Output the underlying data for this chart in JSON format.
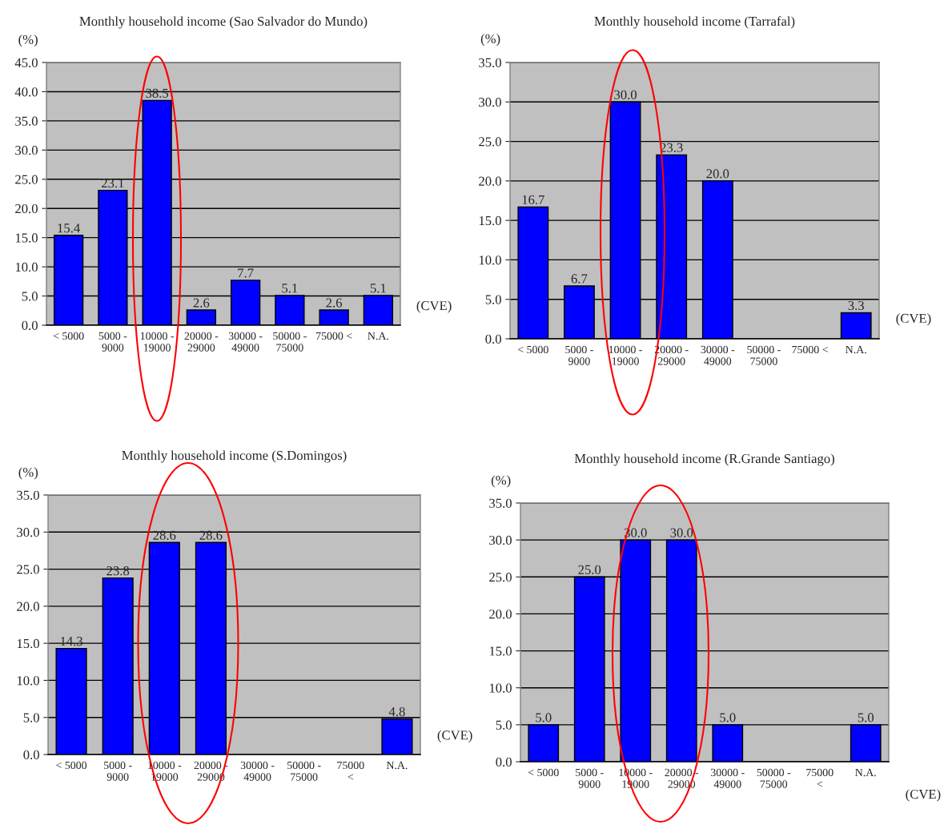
{
  "chart_data": [
    {
      "type": "bar",
      "title": "Monthly household income (Sao Salvador do Mundo)",
      "ylabel": "(%)",
      "xlabel": "(CVE)",
      "categories": [
        "< 5000",
        "5000 -\n9000",
        "10000 -\n19000",
        "20000 -\n29000",
        "30000 -\n49000",
        "50000 -\n75000",
        "75000 <",
        "N.A."
      ],
      "values": [
        15.4,
        23.1,
        38.5,
        2.6,
        7.7,
        5.1,
        2.6,
        5.1
      ],
      "value_labels": [
        "15.4",
        "23.1",
        "38.5",
        "2.6",
        "7.7",
        "5.1",
        "2.6",
        "5.1"
      ],
      "color": "#0000ff",
      "ylim": [
        0,
        45
      ],
      "yticks": [
        {
          "value": 0,
          "label": "0.0"
        },
        {
          "value": 5,
          "label": "5.0"
        },
        {
          "value": 10,
          "label": "10.0"
        },
        {
          "value": 15,
          "label": "15.0"
        },
        {
          "value": 20,
          "label": "20.0"
        },
        {
          "value": 25,
          "label": "25.0"
        },
        {
          "value": 30,
          "label": "30.0"
        },
        {
          "value": 35,
          "label": "35.0"
        },
        {
          "value": 40,
          "label": "40.0"
        },
        {
          "value": 45,
          "label": "45.0"
        }
      ],
      "grid": "y",
      "legend": false
    },
    {
      "type": "bar",
      "title": "Monthly household income (Tarrafal)",
      "ylabel": "(%)",
      "xlabel": "(CVE)",
      "categories": [
        "< 5000",
        "5000 -\n9000",
        "10000 -\n19000",
        "20000 -\n29000",
        "30000 -\n49000",
        "50000 -\n75000",
        "75000 <",
        "N.A."
      ],
      "values": [
        16.7,
        6.7,
        30.0,
        23.3,
        20.0,
        null,
        null,
        3.3
      ],
      "value_labels": [
        "16.7",
        "6.7",
        "30.0",
        "23.3",
        "20.0",
        null,
        null,
        "3.3"
      ],
      "color": "#0000ff",
      "ylim": [
        0,
        35
      ],
      "yticks": [
        {
          "value": 0,
          "label": "0.0"
        },
        {
          "value": 5,
          "label": "5.0"
        },
        {
          "value": 10,
          "label": "10.0"
        },
        {
          "value": 15,
          "label": "15.0"
        },
        {
          "value": 20,
          "label": "20.0"
        },
        {
          "value": 25,
          "label": "25.0"
        },
        {
          "value": 30,
          "label": "30.0"
        },
        {
          "value": 35,
          "label": "35.0"
        }
      ],
      "grid": "y",
      "legend": false
    },
    {
      "type": "bar",
      "title": "Monthly household income (S.Domingos)",
      "ylabel": "(%)",
      "xlabel": "(CVE)",
      "categories": [
        "< 5000",
        "5000 -\n9000",
        "10000 -\n19000",
        "20000 -\n29000",
        "30000 -\n49000",
        "50000 -\n75000",
        "75000\n<",
        "N.A."
      ],
      "values": [
        14.3,
        23.8,
        28.6,
        28.6,
        null,
        null,
        null,
        4.8
      ],
      "value_labels": [
        "14.3",
        "23.8",
        "28.6",
        "28.6",
        null,
        null,
        null,
        "4.8"
      ],
      "color": "#0000ff",
      "ylim": [
        0,
        35
      ],
      "yticks": [
        {
          "value": 0,
          "label": "0.0"
        },
        {
          "value": 5,
          "label": "5.0"
        },
        {
          "value": 10,
          "label": "10.0"
        },
        {
          "value": 15,
          "label": "15.0"
        },
        {
          "value": 20,
          "label": "20.0"
        },
        {
          "value": 25,
          "label": "25.0"
        },
        {
          "value": 30,
          "label": "30.0"
        },
        {
          "value": 35,
          "label": "35.0"
        }
      ],
      "grid": "y",
      "legend": false
    },
    {
      "type": "bar",
      "title": "Monthly household income (R.Grande Santiago)",
      "ylabel": "(%)",
      "xlabel": "(CVE)",
      "categories": [
        "< 5000",
        "5000 -\n9000",
        "10000 -\n19000",
        "20000 -\n29000",
        "30000 -\n49000",
        "50000 -\n75000",
        "75000\n<",
        "N.A."
      ],
      "values": [
        5.0,
        25.0,
        30.0,
        30.0,
        5.0,
        null,
        null,
        5.0
      ],
      "value_labels": [
        "5.0",
        "25.0",
        "30.0",
        "30.0",
        "5.0",
        null,
        null,
        "5.0"
      ],
      "color": "#0000ff",
      "ylim": [
        0,
        35
      ],
      "yticks": [
        {
          "value": 0,
          "label": "0.0"
        },
        {
          "value": 5,
          "label": "5.0"
        },
        {
          "value": 10,
          "label": "10.0"
        },
        {
          "value": 15,
          "label": "15.0"
        },
        {
          "value": 20,
          "label": "20.0"
        },
        {
          "value": 25,
          "label": "25.0"
        },
        {
          "value": 30,
          "label": "30.0"
        },
        {
          "value": 35,
          "label": "35.0"
        }
      ],
      "grid": "y",
      "legend": false
    }
  ]
}
